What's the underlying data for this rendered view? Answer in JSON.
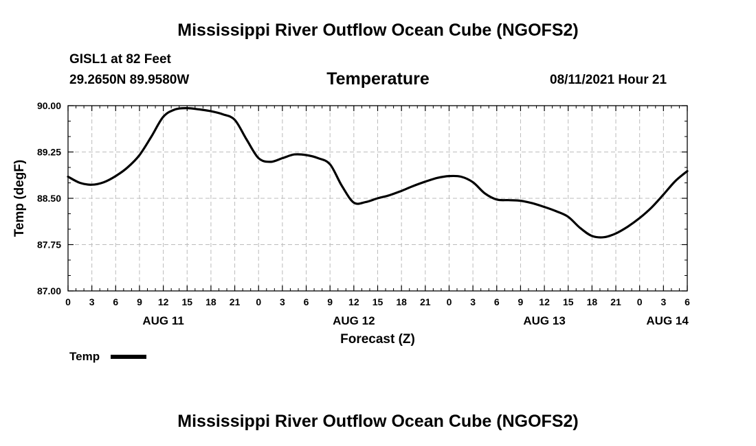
{
  "header": {
    "title": "Mississippi River Outflow Ocean Cube (NGOFS2)",
    "station": "GISL1 at 82 Feet",
    "coords": "29.2650N  89.9580W",
    "variable": "Temperature",
    "datetime": "08/11/2021 Hour 21"
  },
  "footer": {
    "title": "Mississippi River Outflow Ocean Cube (NGOFS2)"
  },
  "legend": {
    "label": "Temp"
  },
  "chart_data": {
    "type": "line",
    "ylabel": "Temp (degF)",
    "xlabel": "Forecast (Z)",
    "ylim": [
      87.0,
      90.0
    ],
    "yticks": [
      "90.00",
      "89.25",
      "88.50",
      "87.75",
      "87.00"
    ],
    "ytick_values": [
      90.0,
      89.25,
      88.5,
      87.75,
      87.0
    ],
    "xlim": [
      0,
      78
    ],
    "xtick_labels": [
      "0",
      "3",
      "6",
      "9",
      "12",
      "15",
      "18",
      "21",
      "0",
      "3",
      "6",
      "9",
      "12",
      "15",
      "18",
      "21",
      "0",
      "3",
      "6",
      "9",
      "12",
      "15",
      "18",
      "21",
      "0",
      "3",
      "6"
    ],
    "day_labels": [
      {
        "label": "AUG 11",
        "hour": 12
      },
      {
        "label": "AUG 12",
        "hour": 36
      },
      {
        "label": "AUG 13",
        "hour": 60
      },
      {
        "label": "AUG 14",
        "hour": 75.5
      }
    ],
    "grid": true,
    "series": [
      {
        "name": "Temp",
        "color": "#000000",
        "x": [
          0,
          1.5,
          3,
          4.5,
          6,
          7.5,
          9,
          10.5,
          12,
          13.5,
          15,
          16.5,
          18,
          19.5,
          21,
          22.5,
          24,
          25.5,
          27,
          28.5,
          30,
          31.5,
          33,
          34.5,
          36,
          37.5,
          39,
          40.5,
          42,
          43.5,
          45,
          46.5,
          48,
          49.5,
          51,
          52.5,
          54,
          55.5,
          57,
          58.5,
          60,
          61.5,
          63,
          64.5,
          66,
          67.5,
          69,
          70.5,
          72,
          73.5,
          75,
          76.5,
          78
        ],
        "y": [
          88.85,
          88.75,
          88.72,
          88.76,
          88.86,
          89.0,
          89.2,
          89.5,
          89.82,
          89.94,
          89.96,
          89.94,
          89.91,
          89.86,
          89.77,
          89.45,
          89.15,
          89.09,
          89.15,
          89.21,
          89.2,
          89.15,
          89.05,
          88.7,
          88.43,
          88.44,
          88.5,
          88.55,
          88.62,
          88.7,
          88.77,
          88.83,
          88.86,
          88.85,
          88.76,
          88.58,
          88.48,
          88.47,
          88.46,
          88.42,
          88.36,
          88.29,
          88.2,
          88.02,
          87.89,
          87.87,
          87.93,
          88.04,
          88.18,
          88.35,
          88.56,
          88.78,
          88.94
        ]
      }
    ]
  }
}
